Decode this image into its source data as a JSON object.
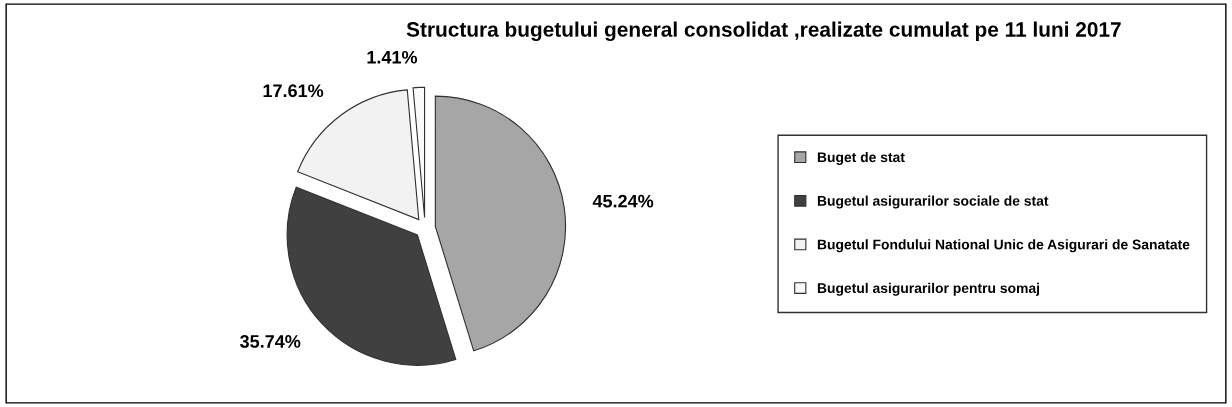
{
  "chart_data": {
    "type": "pie",
    "title": "Structura bugetului general consolidat ,realizate cumulat pe 11 luni 2017",
    "categories": [
      "Buget de stat",
      "Bugetul asigurarilor sociale de stat",
      "Bugetul Fondului National Unic de Asigurari de Sanatate",
      "Bugetul asigurarilor pentru somaj"
    ],
    "values": [
      45.24,
      35.74,
      17.61,
      1.41
    ],
    "colors": [
      "#a6a6a6",
      "#404040",
      "#f2f2f2",
      "#fafafa"
    ],
    "value_labels": [
      "45.24%",
      "35.74%",
      "17.61%",
      "1.41%"
    ],
    "legend": "right"
  }
}
